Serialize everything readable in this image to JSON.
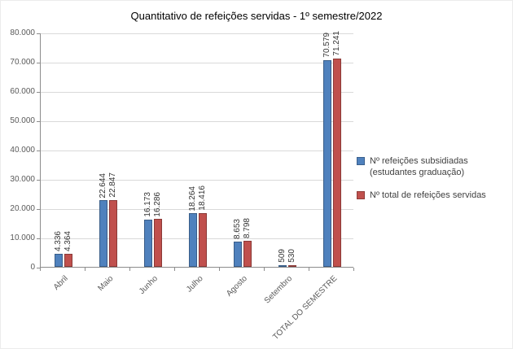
{
  "chart_data": {
    "type": "bar",
    "title": "Quantitativo de refeições servidas - 1º semestre/2022",
    "categories": [
      "Abril",
      "Maio",
      "Junho",
      "Julho",
      "Agosto",
      "Setembro",
      "TOTAL DO SEMESTRE"
    ],
    "series": [
      {
        "name": "Nº refeições subsidiadas (estudantes graduação)",
        "color": "#4f81bd",
        "values": [
          4336,
          22644,
          16173,
          18264,
          8653,
          509,
          70579
        ],
        "labels": [
          "4.336",
          "22.644",
          "16.173",
          "18.264",
          "8.653",
          "509",
          "70.579"
        ]
      },
      {
        "name": "Nº total de refeições servidas",
        "color": "#c0504d",
        "values": [
          4364,
          22847,
          16286,
          18416,
          8798,
          530,
          71241
        ],
        "labels": [
          "4.364",
          "22.847",
          "16.286",
          "18.416",
          "8.798",
          "530",
          "71.241"
        ]
      }
    ],
    "xlabel": "",
    "ylabel": "",
    "ylim": [
      0,
      80000
    ],
    "ytick_labels": [
      "0",
      "10.000",
      "20.000",
      "30.000",
      "40.000",
      "50.000",
      "60.000",
      "70.000",
      "80.000"
    ],
    "grid": true,
    "legend_position": "right"
  }
}
